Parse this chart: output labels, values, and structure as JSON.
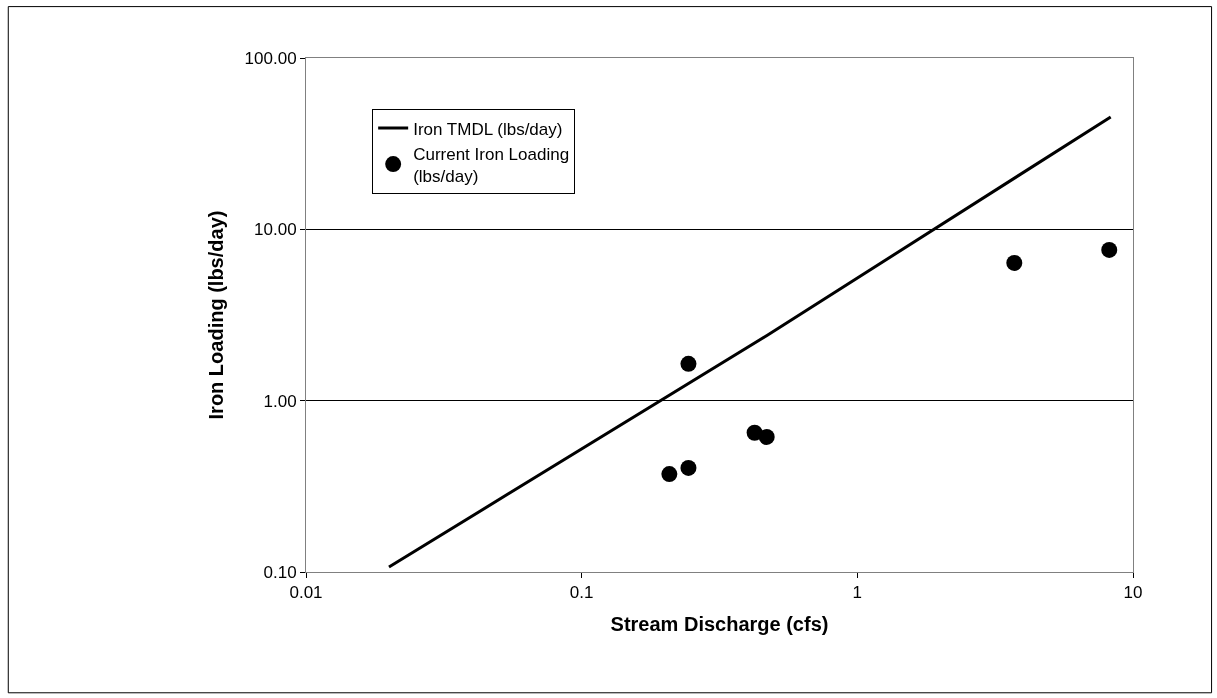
{
  "chart_data": {
    "type": "scatter",
    "xlabel": "Stream Discharge (cfs)",
    "ylabel": "Iron Loading (lbs/day)",
    "log": "xy",
    "xlim": [
      0.01,
      10
    ],
    "xticks": [
      0.01,
      0.1,
      1,
      10
    ],
    "ylim": [
      0.1,
      100
    ],
    "yticks": [
      {
        "value": 0.1,
        "label": "0.10"
      },
      {
        "value": 1,
        "label": "1.00"
      },
      {
        "value": 10,
        "label": "10.00"
      },
      {
        "value": 100,
        "label": "100.00"
      }
    ],
    "grid": "y",
    "legend": "top left",
    "series": [
      {
        "name": "Iron TMDL (lbs/day)",
        "type": "line",
        "color": "#000000",
        "marker": "none",
        "x": [
          0.02,
          0.47,
          8.3
        ],
        "values": [
          0.107,
          2.4,
          45.3
        ]
      },
      {
        "name": "Current Iron Loading (lbs/day)",
        "color": "#000000",
        "marker": "circle",
        "x": [
          0.208,
          0.244,
          0.244,
          0.424,
          0.469,
          3.71,
          8.2
        ],
        "values": [
          0.373,
          0.405,
          1.64,
          0.65,
          0.614,
          6.37,
          7.58
        ]
      }
    ]
  }
}
